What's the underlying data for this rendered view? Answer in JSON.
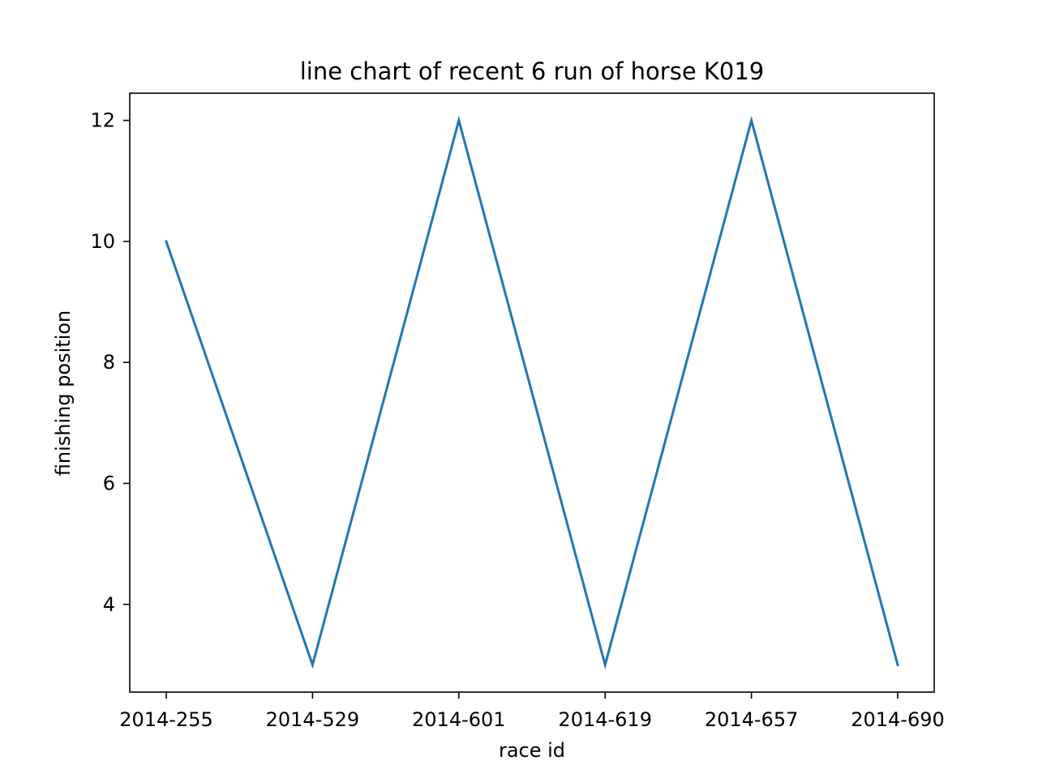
{
  "chart_data": {
    "type": "line",
    "title": "line chart of recent 6 run of horse K019",
    "xlabel": "race id",
    "ylabel": "finishing position",
    "categories": [
      "2014-255",
      "2014-529",
      "2014-601",
      "2014-619",
      "2014-657",
      "2014-690"
    ],
    "series": [
      {
        "values": [
          10,
          3,
          12,
          3,
          12,
          3
        ],
        "color": "#1f77b4"
      }
    ],
    "ylim": [
      2.55,
      12.45
    ],
    "yticks": [
      4,
      6,
      8,
      10,
      12
    ],
    "grid": false,
    "legend": "none"
  }
}
